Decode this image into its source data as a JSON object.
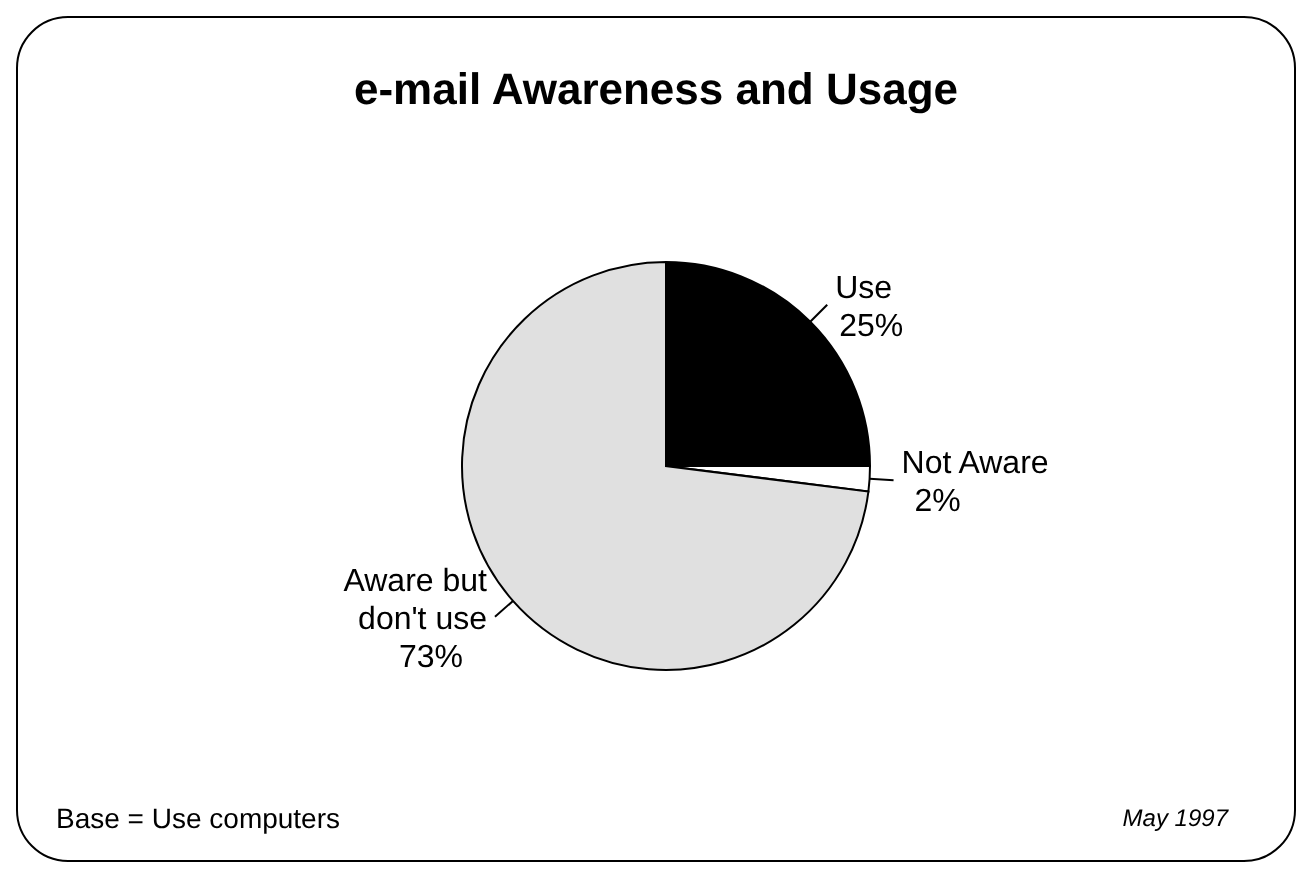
{
  "chart_data": {
    "type": "pie",
    "title": "e-mail Awareness and Usage",
    "categories": [
      "Use",
      "Not Aware",
      "Aware but don't use"
    ],
    "values": [
      25,
      2,
      73
    ],
    "colors": [
      "#000000",
      "#ffffff",
      "#e0e0e0"
    ],
    "value_labels": [
      "25%",
      "2%",
      "73%"
    ],
    "annotations": [
      "May 1997",
      "Base = Use computers"
    ]
  }
}
